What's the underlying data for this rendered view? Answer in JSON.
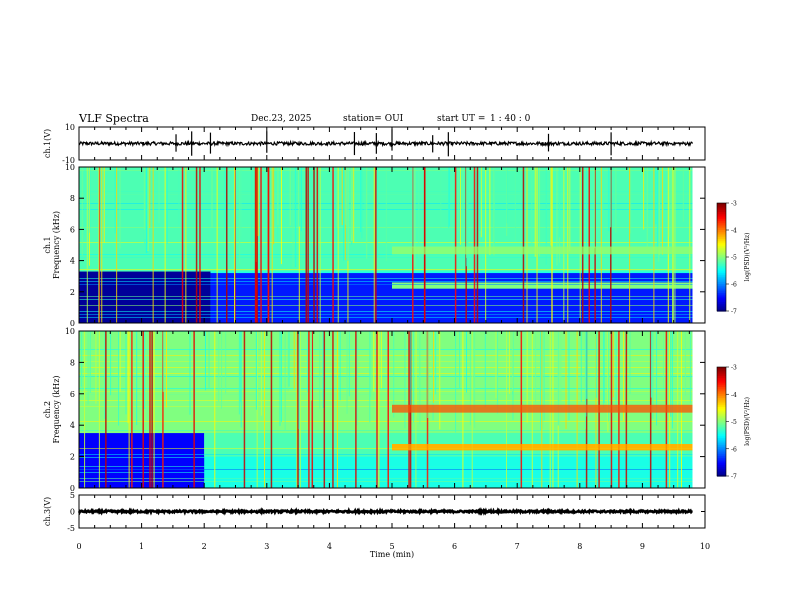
{
  "header": {
    "title": "VLF Spectra",
    "date": "Dec.23, 2025",
    "station": "station= OUI",
    "start_label": "start  UT =",
    "start_time": "1 : 40 : 0"
  },
  "chart_data": [
    {
      "type": "line",
      "panel": "ch1-waveform",
      "ylabel": "ch.1(V)",
      "ylim": [
        -10,
        10
      ],
      "y_ticks": [
        "10",
        "-10"
      ],
      "xlim": [
        0,
        10
      ],
      "series": [
        {
          "values_summary": {
            "baseline": 0,
            "noise_amplitude": 1,
            "spikes_x": [
              1.55,
              1.8,
              2.1,
              3.0,
              4.4,
              4.75,
              5.0,
              5.65,
              5.9,
              7.5,
              8.5
            ]
          }
        }
      ],
      "color": "#000000"
    },
    {
      "type": "heatmap",
      "panel": "ch1-spectrogram",
      "ylabel_line1": "ch.1",
      "ylabel_line2": "Frequency (kHz)",
      "ylim": [
        0,
        10
      ],
      "y_ticks": [
        "0",
        "2",
        "4",
        "6",
        "8",
        "10"
      ],
      "xlim": [
        0,
        9.8
      ],
      "color_scale": {
        "label": "log(PSD)(V²/Hz)",
        "min": -7,
        "max": -3,
        "ticks": [
          "-3",
          "-4",
          "-5",
          "-6",
          "-7"
        ]
      },
      "bands": [
        {
          "f_low": 0,
          "f_high": 3.3,
          "t_start": 0,
          "t_end": 2.1,
          "level": -6.9
        },
        {
          "f_low": 0,
          "f_high": 3.2,
          "t_start": 2.1,
          "t_end": 9.8,
          "level": -6.4
        },
        {
          "f_low": 2.2,
          "f_high": 2.6,
          "t_start": 5.0,
          "t_end": 9.8,
          "level": -5.0
        },
        {
          "f_low": 4.4,
          "f_high": 4.9,
          "t_start": 5.0,
          "t_end": 9.8,
          "level": -4.9
        },
        {
          "f_low": 3.3,
          "f_high": 10,
          "t_start": 0,
          "t_end": 9.8,
          "level": -5.2
        }
      ]
    },
    {
      "type": "heatmap",
      "panel": "ch2-spectrogram",
      "ylabel_line1": "ch.2",
      "ylabel_line2": "Frequency (kHz)",
      "ylim": [
        0,
        10
      ],
      "y_ticks": [
        "0",
        "2",
        "4",
        "6",
        "8",
        "10"
      ],
      "xlim": [
        0,
        9.8
      ],
      "color_scale": {
        "label": "log(PSD)(V²/Hz)",
        "min": -7,
        "max": -3,
        "ticks": [
          "-3",
          "-4",
          "-5",
          "-6",
          "-7"
        ]
      },
      "bands": [
        {
          "f_low": 0,
          "f_high": 3.5,
          "t_start": 0,
          "t_end": 2.0,
          "level": -6.5
        },
        {
          "f_low": 2.0,
          "f_high": 3.5,
          "t_start": 2.0,
          "t_end": 9.8,
          "level": -5.2
        },
        {
          "f_low": 2.4,
          "f_high": 2.8,
          "t_start": 5.0,
          "t_end": 9.8,
          "level": -4.2
        },
        {
          "f_low": 4.8,
          "f_high": 5.3,
          "t_start": 5.0,
          "t_end": 9.8,
          "level": -3.8
        },
        {
          "f_low": 3.5,
          "f_high": 10,
          "t_start": 0,
          "t_end": 9.8,
          "level": -5.0
        }
      ]
    },
    {
      "type": "line",
      "panel": "ch3-waveform",
      "ylabel": "ch.3(V)",
      "ylim": [
        -5,
        5
      ],
      "y_ticks": [
        "5",
        "0",
        "-5"
      ],
      "xlim": [
        0,
        10
      ],
      "series": [
        {
          "values_summary": {
            "baseline": 0,
            "noise_amplitude": 0.3
          }
        }
      ],
      "color": "#000000"
    }
  ],
  "x_axis": {
    "label": "Time (min)",
    "ticks": [
      "0",
      "1",
      "2",
      "3",
      "4",
      "5",
      "6",
      "7",
      "8",
      "9",
      "10"
    ]
  }
}
